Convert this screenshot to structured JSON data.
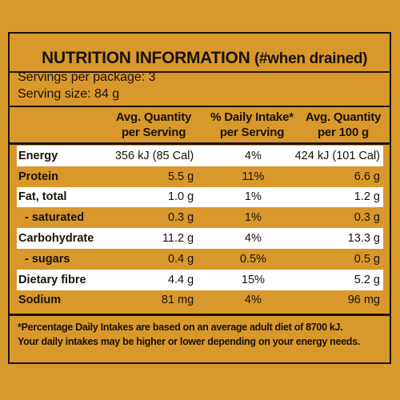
{
  "panel": {
    "title": "NUTRITION INFORMATION",
    "title_note": "(#when drained)",
    "servings_per_package": "Servings per package: 3",
    "serving_size": "Serving size: 84 g"
  },
  "columns": {
    "col1": [
      "Avg. Quantity",
      "per Serving"
    ],
    "col2": [
      "% Daily Intake*",
      "per Serving"
    ],
    "col3": [
      "Avg. Quantity",
      "per 100 g"
    ]
  },
  "rows": [
    {
      "name": "Energy",
      "per_serving": "356 kJ (85 Cal)",
      "daily_intake": "4%",
      "per_100g": "424 kJ (101 Cal)",
      "shade": "lt"
    },
    {
      "name": "Protein",
      "per_serving": "5.5 g",
      "daily_intake": "11%",
      "per_100g": "6.6 g",
      "shade": "dk"
    },
    {
      "name": "Fat, total",
      "per_serving": "1.0 g",
      "daily_intake": "1%",
      "per_100g": "1.2 g",
      "shade": "lt"
    },
    {
      "name": "- saturated",
      "per_serving": "0.3 g",
      "daily_intake": "1%",
      "per_100g": "0.3 g",
      "shade": "dk",
      "indent": true
    },
    {
      "name": "Carbohydrate",
      "per_serving": "11.2 g",
      "daily_intake": "4%",
      "per_100g": "13.3 g",
      "shade": "lt"
    },
    {
      "name": "- sugars",
      "per_serving": "0.4 g",
      "daily_intake": "0.5%",
      "per_100g": "0.5 g",
      "shade": "dk",
      "indent": true
    },
    {
      "name": "Dietary fibre",
      "per_serving": "4.4 g",
      "daily_intake": "15%",
      "per_100g": "5.2 g",
      "shade": "lt"
    },
    {
      "name": "Sodium",
      "per_serving": "81 mg",
      "daily_intake": "4%",
      "per_100g": "96 mg",
      "shade": "dk"
    }
  ],
  "footnote": [
    "*Percentage Daily Intakes are based on an average adult diet of 8700 kJ.",
    "Your daily intakes may be higher or lower depending on your energy needs."
  ],
  "colors": {
    "background": "#d9982c",
    "row_light": "#ffffff",
    "ink": "#1a1208"
  }
}
